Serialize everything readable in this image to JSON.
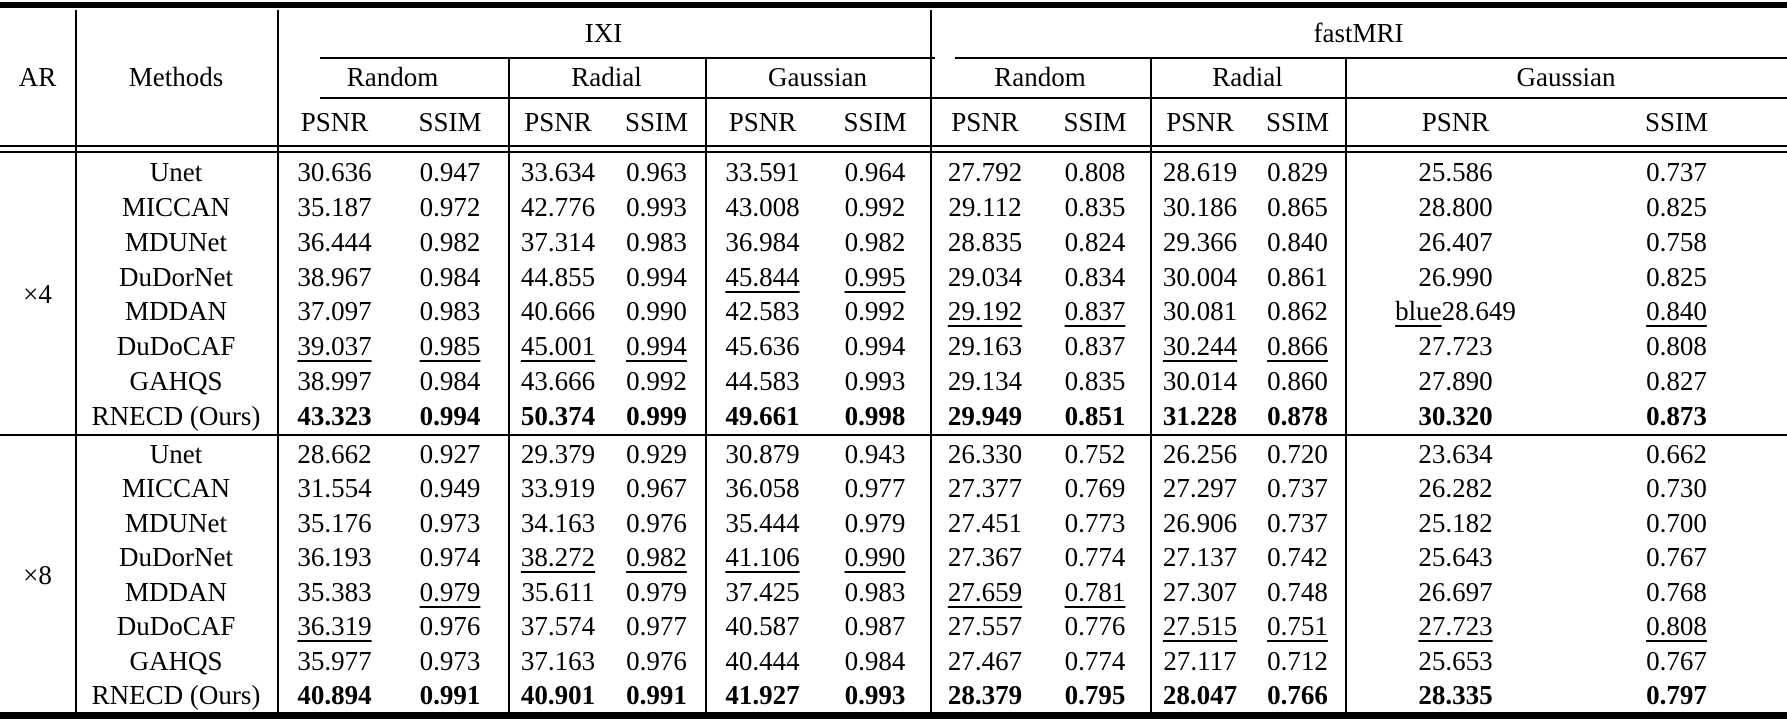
{
  "page": {
    "background": "#ffffff",
    "text_color": "#000000"
  },
  "table": {
    "header": {
      "ar": "AR",
      "methods": "Methods",
      "datasets": [
        {
          "label": "IXI",
          "masks": [
            "Random",
            "Radial",
            "Gaussian"
          ]
        },
        {
          "label": "fastMRI",
          "masks": [
            "Random",
            "Radial",
            "Gaussian"
          ]
        }
      ],
      "metrics": [
        "PSNR",
        "SSIM"
      ]
    },
    "groups": [
      {
        "ar": "×4",
        "rows": [
          {
            "method": "Unet",
            "cells": [
              "30.636",
              "0.947",
              "33.634",
              "0.963",
              "33.591",
              "0.964",
              "27.792",
              "0.808",
              "28.619",
              "0.829",
              "25.586",
              "0.737"
            ]
          },
          {
            "method": "MICCAN",
            "cells": [
              "35.187",
              "0.972",
              "42.776",
              "0.993",
              "43.008",
              "0.992",
              "29.112",
              "0.835",
              "30.186",
              "0.865",
              "28.800",
              "0.825"
            ]
          },
          {
            "method": "MDUNet",
            "cells": [
              "36.444",
              "0.982",
              "37.314",
              "0.983",
              "36.984",
              "0.982",
              "28.835",
              "0.824",
              "29.366",
              "0.840",
              "26.407",
              "0.758"
            ]
          },
          {
            "method": "DuDorNet",
            "cells": [
              "38.967",
              "0.984",
              "44.855",
              "0.994",
              {
                "v": "45.844",
                "u": true
              },
              {
                "v": "0.995",
                "u": true
              },
              "29.034",
              "0.834",
              "30.004",
              "0.861",
              "26.990",
              "0.825"
            ]
          },
          {
            "method": "MDDAN",
            "cells": [
              "37.097",
              "0.983",
              "40.666",
              "0.990",
              "42.583",
              "0.992",
              {
                "v": "29.192",
                "u": true
              },
              {
                "v": "0.837",
                "u": true
              },
              "30.081",
              "0.862",
              {
                "pre": "blue",
                "v": "28.649"
              },
              {
                "v": "0.840",
                "u": true
              }
            ]
          },
          {
            "method": "DuDoCAF",
            "cells": [
              {
                "v": "39.037",
                "u": true
              },
              {
                "v": "0.985",
                "u": true
              },
              {
                "v": "45.001",
                "u": true
              },
              {
                "v": "0.994",
                "u": true
              },
              "45.636",
              "0.994",
              "29.163",
              "0.837",
              {
                "v": "30.244",
                "u": true
              },
              {
                "v": "0.866",
                "u": true
              },
              "27.723",
              "0.808"
            ]
          },
          {
            "method": "GAHQS",
            "cells": [
              "38.997",
              "0.984",
              "43.666",
              "0.992",
              "44.583",
              "0.993",
              "29.134",
              "0.835",
              "30.014",
              "0.860",
              "27.890",
              "0.827"
            ]
          },
          {
            "method": "RNECD (Ours)",
            "bold": true,
            "cells": [
              "43.323",
              "0.994",
              "50.374",
              "0.999",
              "49.661",
              "0.998",
              "29.949",
              "0.851",
              "31.228",
              "0.878",
              "30.320",
              "0.873"
            ]
          }
        ]
      },
      {
        "ar": "×8",
        "rows": [
          {
            "method": "Unet",
            "cells": [
              "28.662",
              "0.927",
              "29.379",
              "0.929",
              "30.879",
              "0.943",
              "26.330",
              "0.752",
              "26.256",
              "0.720",
              "23.634",
              "0.662"
            ]
          },
          {
            "method": "MICCAN",
            "cells": [
              "31.554",
              "0.949",
              "33.919",
              "0.967",
              "36.058",
              "0.977",
              "27.377",
              "0.769",
              "27.297",
              "0.737",
              "26.282",
              "0.730"
            ]
          },
          {
            "method": "MDUNet",
            "cells": [
              "35.176",
              "0.973",
              "34.163",
              "0.976",
              "35.444",
              "0.979",
              "27.451",
              "0.773",
              "26.906",
              "0.737",
              "25.182",
              "0.700"
            ]
          },
          {
            "method": "DuDorNet",
            "cells": [
              "36.193",
              "0.974",
              {
                "v": "38.272",
                "u": true
              },
              {
                "v": "0.982",
                "u": true
              },
              {
                "v": "41.106",
                "u": true
              },
              {
                "v": "0.990",
                "u": true
              },
              "27.367",
              "0.774",
              "27.137",
              "0.742",
              "25.643",
              "0.767"
            ]
          },
          {
            "method": "MDDAN",
            "cells": [
              "35.383",
              {
                "v": "0.979",
                "u": true
              },
              "35.611",
              "0.979",
              "37.425",
              "0.983",
              {
                "v": "27.659",
                "u": true
              },
              {
                "v": "0.781",
                "u": true
              },
              "27.307",
              "0.748",
              "26.697",
              "0.768"
            ]
          },
          {
            "method": "DuDoCAF",
            "cells": [
              {
                "v": "36.319",
                "u": true
              },
              "0.976",
              "37.574",
              "0.977",
              "40.587",
              "0.987",
              "27.557",
              "0.776",
              {
                "v": "27.515",
                "u": true
              },
              {
                "v": "0.751",
                "u": true
              },
              {
                "v": "27.723",
                "u": true
              },
              {
                "v": "0.808",
                "u": true
              }
            ]
          },
          {
            "method": "GAHQS",
            "cells": [
              "35.977",
              "0.973",
              "37.163",
              "0.976",
              "40.444",
              "0.984",
              "27.467",
              "0.774",
              "27.117",
              "0.712",
              "25.653",
              "0.767"
            ]
          },
          {
            "method": "RNECD (Ours)",
            "bold": true,
            "cells": [
              "40.894",
              "0.991",
              "40.901",
              "0.991",
              "41.927",
              "0.993",
              "28.379",
              "0.795",
              "28.047",
              "0.766",
              "28.335",
              "0.797"
            ]
          }
        ]
      }
    ]
  }
}
